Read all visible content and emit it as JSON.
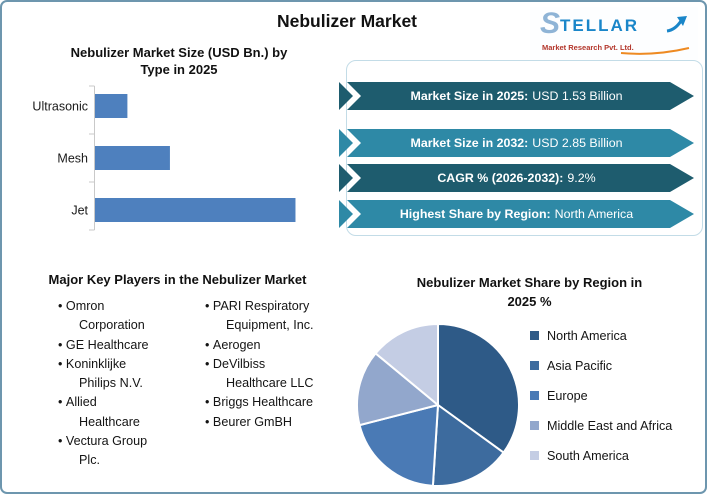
{
  "header": {
    "title": "Nebulizer Market"
  },
  "logo": {
    "brand_s": "S",
    "brand_rest": "TELLAR",
    "subtitle": "Market Research Pvt. Ltd."
  },
  "banners": [
    {
      "label": "Market Size in 2025:",
      "value": "USD 1.53 Billion",
      "color": "#1E5C6E"
    },
    {
      "label": "Market Size in 2032:",
      "value": "USD 2.85 Billion",
      "color": "#2E89A6"
    },
    {
      "label": "CAGR % (2026-2032):",
      "value": "9.2%",
      "color": "#1E5C6E"
    },
    {
      "label": "Highest Share by Region:",
      "value": "North America",
      "color": "#2E89A6"
    }
  ],
  "key_players": {
    "title": "Major Key Players in the Nebulizer Market",
    "column1": [
      "Omron Corporation",
      "GE Healthcare",
      "Koninklijke Philips N.V.",
      "Allied Healthcare",
      "Vectura Group Plc."
    ],
    "column2": [
      "PARI Respiratory Equipment, Inc.",
      "Aerogen",
      "DeVilbiss Healthcare LLC",
      "Briggs Healthcare",
      "Beurer GmBH"
    ]
  },
  "chart_data": [
    {
      "type": "bar",
      "orientation": "horizontal",
      "title": "Nebulizer Market Size (USD Bn.) by Type in 2025",
      "title_lines": [
        "Nebulizer Market Size (USD Bn.) by",
        "Type in 2025"
      ],
      "categories": [
        "Ultrasonic",
        "Mesh",
        "Jet"
      ],
      "values": [
        0.16,
        0.37,
        0.99
      ],
      "unit": "USD Bn.",
      "xlim": [
        0,
        1.2
      ],
      "bar_color": "#4E80BE",
      "grid": false
    },
    {
      "type": "pie",
      "title": "Nebulizer Market Share by Region in 2025 %",
      "title_lines": [
        "Nebulizer Market Share by Region in",
        "2025 %"
      ],
      "labels": [
        "North America",
        "Asia Pacific",
        "Europe",
        "Middle East and Africa",
        "South America"
      ],
      "values": [
        35,
        16,
        20,
        15,
        14
      ],
      "colors": [
        "#2E5A87",
        "#3D6B9E",
        "#4A7AB5",
        "#92A7CC",
        "#C4CDE4"
      ],
      "legend_position": "right",
      "start_angle": 0,
      "direction": "clockwise"
    }
  ]
}
